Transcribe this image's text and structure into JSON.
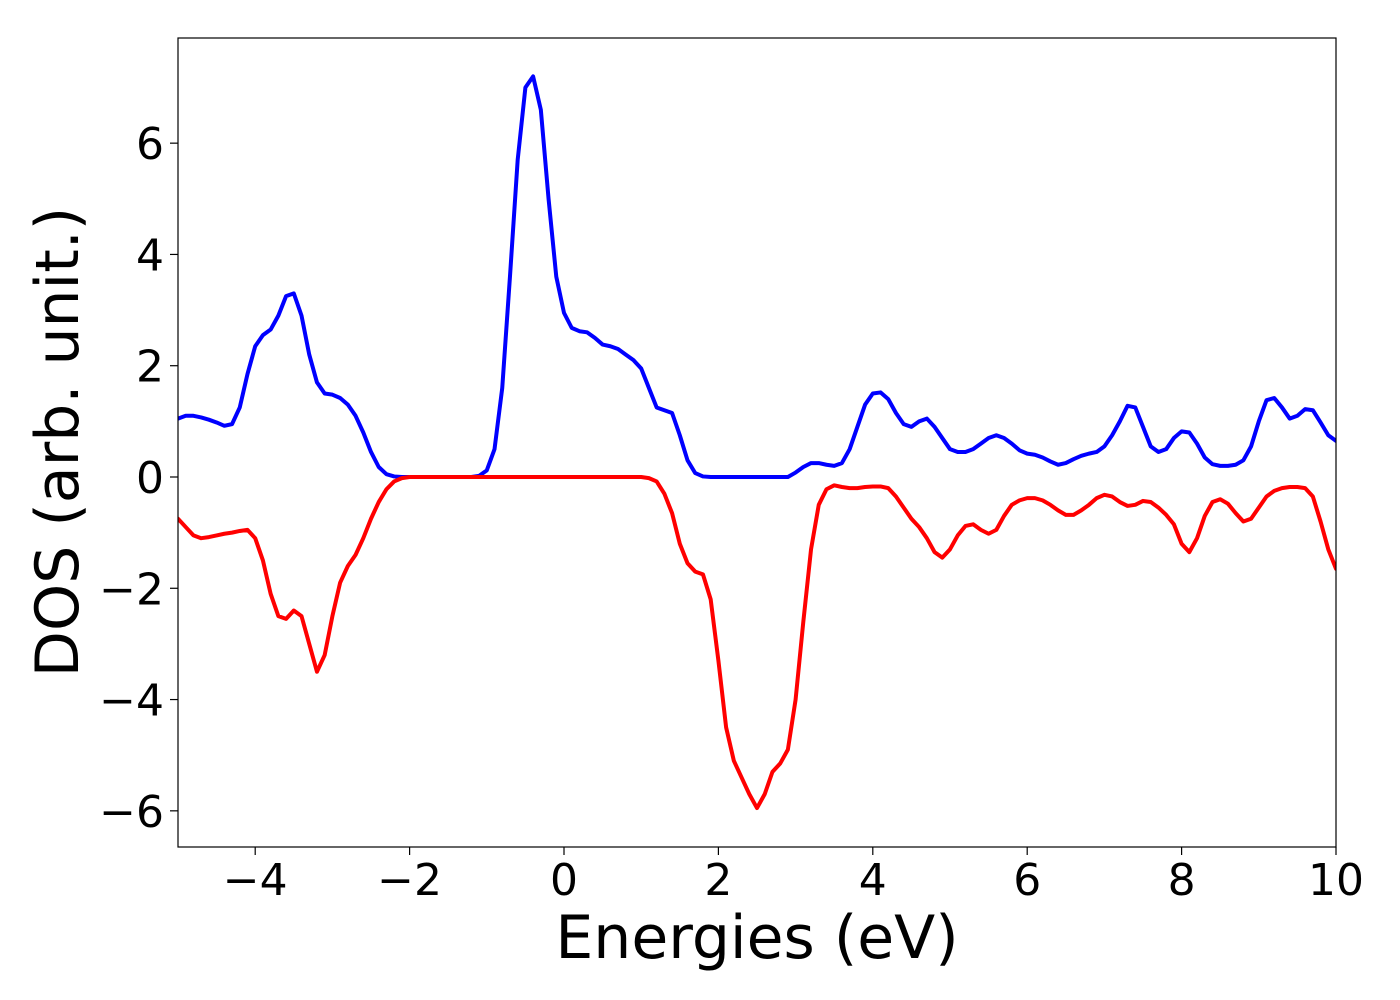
{
  "chart_data": {
    "type": "line",
    "xlabel": "Energies (eV)",
    "ylabel": "DOS (arb. unit.)",
    "xlim": [
      -5,
      10
    ],
    "ylim": [
      -6.65,
      7.89
    ],
    "xticks": [
      {
        "value": -4,
        "label": "−4"
      },
      {
        "value": -2,
        "label": "−2"
      },
      0,
      2,
      4,
      6,
      8,
      10
    ],
    "yticks": [
      {
        "value": -6,
        "label": "−6"
      },
      {
        "value": -4,
        "label": "−4"
      },
      {
        "value": -2,
        "label": "−2"
      },
      0,
      2,
      4,
      6
    ],
    "grid": false,
    "x": [
      -5,
      -4.9,
      -4.8,
      -4.7,
      -4.6,
      -4.5,
      -4.4,
      -4.3,
      -4.2,
      -4.1,
      -4,
      -3.9,
      -3.8,
      -3.7,
      -3.6,
      -3.5,
      -3.4,
      -3.3,
      -3.2,
      -3.1,
      -3,
      -2.9,
      -2.8,
      -2.7,
      -2.6,
      -2.5,
      -2.4,
      -2.3,
      -2.2,
      -2.1,
      -2,
      -1.9,
      -1.8,
      -1.7,
      -1.6,
      -1.5,
      -1.4,
      -1.3,
      -1.2,
      -1.1,
      -1,
      -0.9,
      -0.8,
      -0.7,
      -0.6,
      -0.5,
      -0.4,
      -0.3,
      -0.2,
      -0.1,
      0,
      0.1,
      0.2,
      0.3,
      0.4,
      0.5,
      0.6,
      0.7,
      0.8,
      0.9,
      1,
      1.1,
      1.2,
      1.3,
      1.4,
      1.5,
      1.6,
      1.7,
      1.8,
      1.9,
      2,
      2.1,
      2.2,
      2.3,
      2.4,
      2.5,
      2.6,
      2.7,
      2.8,
      2.9,
      3,
      3.1,
      3.2,
      3.3,
      3.4,
      3.5,
      3.6,
      3.7,
      3.8,
      3.9,
      4,
      4.1,
      4.2,
      4.3,
      4.4,
      4.5,
      4.6,
      4.7,
      4.8,
      4.9,
      5,
      5.1,
      5.2,
      5.3,
      5.4,
      5.5,
      5.6,
      5.7,
      5.8,
      5.9,
      6,
      6.1,
      6.2,
      6.3,
      6.4,
      6.5,
      6.6,
      6.7,
      6.8,
      6.9,
      7,
      7.1,
      7.2,
      7.3,
      7.4,
      7.5,
      7.6,
      7.7,
      7.8,
      7.9,
      8,
      8.1,
      8.2,
      8.3,
      8.4,
      8.5,
      8.6,
      8.7,
      8.8,
      8.9,
      9,
      9.1,
      9.2,
      9.3,
      9.4,
      9.5,
      9.6,
      9.7,
      9.8,
      9.9,
      10
    ],
    "series": [
      {
        "color": "#0000ff",
        "values": [
          1.05,
          1.1,
          1.1,
          1.07,
          1.03,
          0.98,
          0.92,
          0.95,
          1.25,
          1.85,
          2.35,
          2.55,
          2.65,
          2.9,
          3.25,
          3.3,
          2.9,
          2.2,
          1.7,
          1.5,
          1.48,
          1.42,
          1.3,
          1.1,
          0.8,
          0.45,
          0.18,
          0.05,
          0.01,
          0,
          0,
          0,
          0,
          0,
          0,
          0,
          0,
          0,
          0,
          0.02,
          0.12,
          0.5,
          1.6,
          3.6,
          5.7,
          7.0,
          7.2,
          6.6,
          5.0,
          3.6,
          2.95,
          2.68,
          2.62,
          2.6,
          2.5,
          2.38,
          2.35,
          2.3,
          2.2,
          2.1,
          1.95,
          1.6,
          1.25,
          1.2,
          1.15,
          0.75,
          0.3,
          0.07,
          0.01,
          0,
          0,
          0,
          0,
          0,
          0,
          0,
          0,
          0,
          0,
          0,
          0.08,
          0.18,
          0.25,
          0.25,
          0.22,
          0.2,
          0.25,
          0.5,
          0.9,
          1.3,
          1.5,
          1.52,
          1.4,
          1.15,
          0.95,
          0.9,
          1.0,
          1.05,
          0.9,
          0.7,
          0.5,
          0.45,
          0.45,
          0.5,
          0.6,
          0.7,
          0.75,
          0.7,
          0.6,
          0.48,
          0.42,
          0.4,
          0.35,
          0.28,
          0.22,
          0.25,
          0.32,
          0.38,
          0.42,
          0.45,
          0.55,
          0.75,
          1.0,
          1.28,
          1.25,
          0.9,
          0.55,
          0.45,
          0.5,
          0.7,
          0.82,
          0.8,
          0.6,
          0.35,
          0.23,
          0.2,
          0.2,
          0.22,
          0.3,
          0.55,
          1.0,
          1.38,
          1.42,
          1.25,
          1.05,
          1.1,
          1.22,
          1.2,
          0.98,
          0.75,
          0.65
        ]
      },
      {
        "color": "#ff0000",
        "values": [
          -0.75,
          -0.9,
          -1.05,
          -1.1,
          -1.08,
          -1.05,
          -1.02,
          -1.0,
          -0.97,
          -0.95,
          -1.1,
          -1.5,
          -2.1,
          -2.5,
          -2.55,
          -2.4,
          -2.5,
          -3.0,
          -3.5,
          -3.2,
          -2.5,
          -1.9,
          -1.6,
          -1.4,
          -1.1,
          -0.75,
          -0.45,
          -0.22,
          -0.08,
          -0.02,
          0,
          0,
          0,
          0,
          0,
          0,
          0,
          0,
          0,
          0,
          0,
          0,
          0,
          0,
          0,
          0,
          0,
          0,
          0,
          0,
          0,
          0,
          0,
          0,
          0,
          0,
          0,
          0,
          0,
          0,
          0,
          -0.02,
          -0.08,
          -0.3,
          -0.65,
          -1.2,
          -1.55,
          -1.7,
          -1.75,
          -2.2,
          -3.3,
          -4.5,
          -5.1,
          -5.4,
          -5.7,
          -5.95,
          -5.7,
          -5.3,
          -5.15,
          -4.9,
          -4.0,
          -2.6,
          -1.3,
          -0.5,
          -0.22,
          -0.15,
          -0.18,
          -0.2,
          -0.2,
          -0.18,
          -0.17,
          -0.17,
          -0.2,
          -0.35,
          -0.55,
          -0.75,
          -0.9,
          -1.1,
          -1.35,
          -1.45,
          -1.3,
          -1.05,
          -0.88,
          -0.85,
          -0.95,
          -1.02,
          -0.95,
          -0.7,
          -0.5,
          -0.42,
          -0.38,
          -0.38,
          -0.42,
          -0.5,
          -0.6,
          -0.68,
          -0.68,
          -0.6,
          -0.5,
          -0.38,
          -0.32,
          -0.35,
          -0.45,
          -0.52,
          -0.5,
          -0.43,
          -0.45,
          -0.55,
          -0.68,
          -0.85,
          -1.2,
          -1.35,
          -1.1,
          -0.7,
          -0.45,
          -0.4,
          -0.48,
          -0.65,
          -0.8,
          -0.75,
          -0.55,
          -0.35,
          -0.25,
          -0.2,
          -0.18,
          -0.18,
          -0.2,
          -0.35,
          -0.8,
          -1.3,
          -1.65
        ]
      }
    ]
  }
}
